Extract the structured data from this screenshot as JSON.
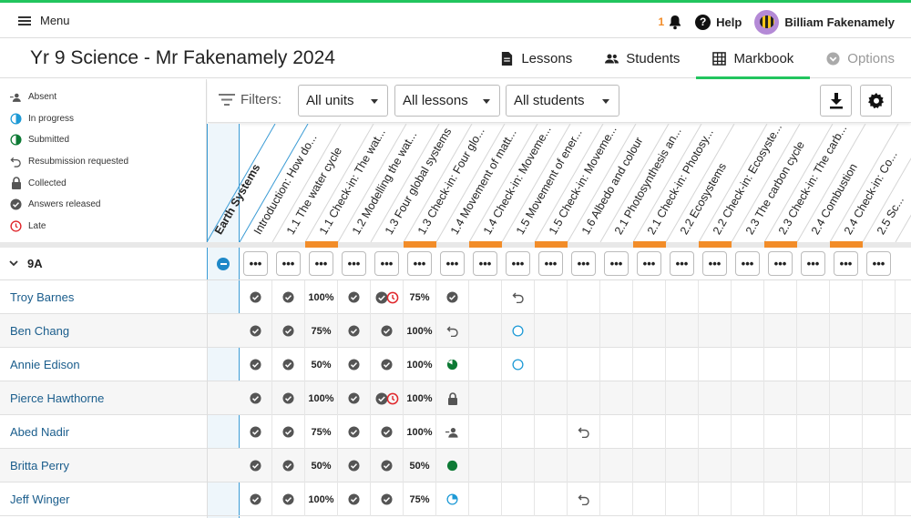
{
  "topbar": {
    "menu_label": "Menu",
    "notifications_count": "1",
    "help_label": "Help",
    "user_name": "Billiam Fakenamely"
  },
  "page": {
    "title": "Yr 9 Science - Mr Fakenamely 2024",
    "tabs": [
      {
        "label": "Lessons",
        "icon": "document-icon",
        "state": "normal"
      },
      {
        "label": "Students",
        "icon": "people-icon",
        "state": "normal"
      },
      {
        "label": "Markbook",
        "icon": "grid-icon",
        "state": "active"
      },
      {
        "label": "Options",
        "icon": "chevron-circle-icon",
        "state": "disabled"
      }
    ]
  },
  "legend": [
    {
      "label": "Absent",
      "icon": "absent-icon"
    },
    {
      "label": "In progress",
      "icon": "in-progress-icon"
    },
    {
      "label": "Submitted",
      "icon": "submitted-icon"
    },
    {
      "label": "Resubmission requested",
      "icon": "resubmission-icon"
    },
    {
      "label": "Collected",
      "icon": "collected-icon"
    },
    {
      "label": "Answers released",
      "icon": "answers-released-icon"
    },
    {
      "label": "Late",
      "icon": "late-icon"
    }
  ],
  "filters": {
    "label": "Filters:",
    "units": "All units",
    "lessons": "All lessons",
    "students": "All students"
  },
  "unit_name": "Earth Systems",
  "columns": [
    "Introduction: How do...",
    "1.1 The water cycle",
    "1.1 Check-in: The wat...",
    "1.2 Modelling the wat...",
    "1.3 Four global systems",
    "1.3 Check-in: Four glo...",
    "1.4 Movement of matt...",
    "1.4 Check-in: Moveme...",
    "1.5 Movement of ener...",
    "1.5 Check-in: Moveme...",
    "1.6 Albedo and colour",
    "2.1 Photosynthesis an...",
    "2.1 Check-in: Photosy...",
    "2.2 Ecosystems",
    "2.2 Check-in: Ecosyste...",
    "2.3 The carbon cycle",
    "2.3 Check-in: The carb...",
    "2.4 Combustion",
    "2.4 Check-in: Co...",
    "2.5 Sc..."
  ],
  "orange_marked_columns": [
    2,
    5,
    7,
    9,
    12,
    14,
    16,
    18
  ],
  "group_name": "9A",
  "dots_label": "•••",
  "students": [
    {
      "name": "Troy Barnes",
      "cells": [
        "check",
        "check",
        "100%",
        "check",
        "check-late",
        "75%",
        "check",
        "",
        "resub"
      ]
    },
    {
      "name": "Ben Chang",
      "cells": [
        "check",
        "check",
        "75%",
        "check",
        "check",
        "100%",
        "resub",
        "",
        "progress-empty"
      ]
    },
    {
      "name": "Annie Edison",
      "cells": [
        "check",
        "check",
        "50%",
        "check",
        "check",
        "100%",
        "submitted-partial",
        "",
        "progress-empty"
      ]
    },
    {
      "name": "Pierce Hawthorne",
      "cells": [
        "check",
        "check",
        "100%",
        "check",
        "check-late",
        "100%",
        "collected"
      ]
    },
    {
      "name": "Abed Nadir",
      "cells": [
        "check",
        "check",
        "75%",
        "check",
        "check",
        "100%",
        "absent",
        "",
        "",
        "",
        "resub"
      ]
    },
    {
      "name": "Britta Perry",
      "cells": [
        "check",
        "check",
        "50%",
        "check",
        "check",
        "50%",
        "submitted-full"
      ]
    },
    {
      "name": "Jeff Winger",
      "cells": [
        "check",
        "check",
        "100%",
        "check",
        "check",
        "75%",
        "progress-partial",
        "",
        "",
        "",
        "resub"
      ]
    }
  ]
}
